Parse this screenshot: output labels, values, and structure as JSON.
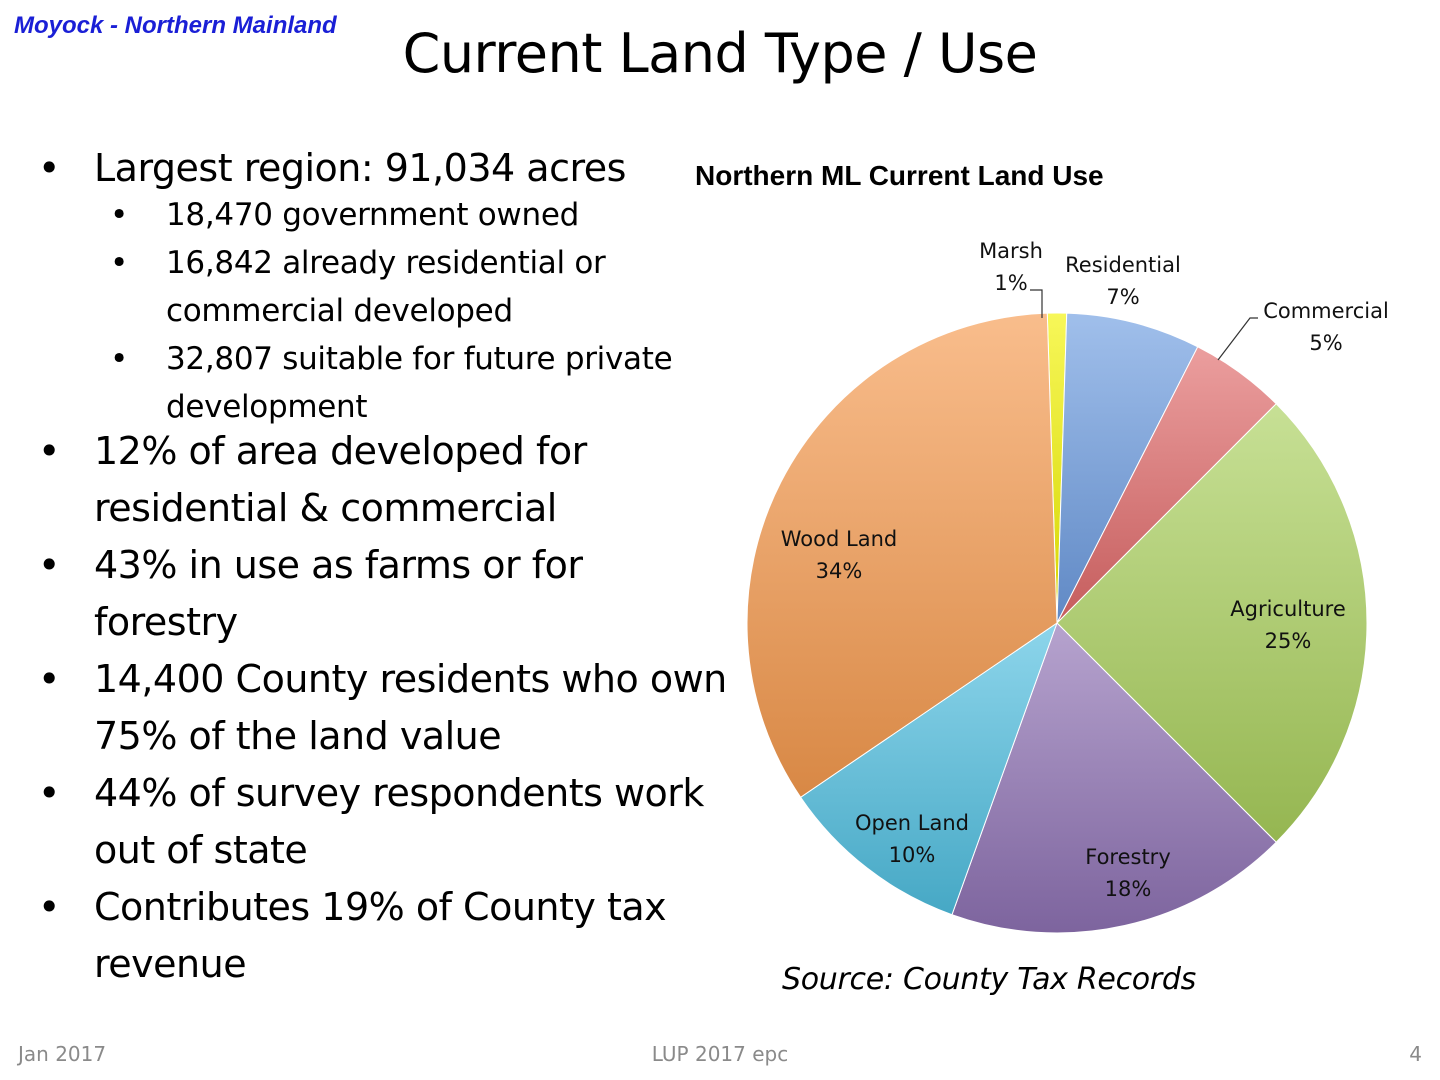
{
  "slide": {
    "region_label": "Moyock - Northern Mainland",
    "title": "Current Land Type / Use",
    "bullets": [
      {
        "text": "Largest region: 91,034 acres",
        "sub": [
          {
            "text": "18,470 government owned"
          },
          {
            "text": "16,842 already residential or commercial developed"
          },
          {
            "text": "32,807 suitable for future private development"
          }
        ]
      },
      {
        "text": "12% of area developed for residential & commercial"
      },
      {
        "text": "43% in use as farms or for forestry"
      },
      {
        "text": "14,400 County residents who own 75% of the land value"
      },
      {
        "text": "44% of survey respondents work out of state"
      },
      {
        "text": "Contributes 19% of County tax revenue"
      }
    ],
    "source": "Source: County Tax Records",
    "footer": {
      "left": "Jan 2017",
      "center": "LUP 2017 epc",
      "right": "4"
    }
  },
  "chart_data": {
    "type": "pie",
    "title": "Northern ML Current Land Use",
    "categories": [
      "Marsh",
      "Residential",
      "Commercial",
      "Agriculture",
      "Forestry",
      "Open Land",
      "Wood Land"
    ],
    "values": [
      1,
      7,
      5,
      25,
      18,
      10,
      34
    ],
    "value_labels": [
      "1%",
      "7%",
      "5%",
      "25%",
      "18%",
      "10%",
      "34%"
    ],
    "colors": [
      "#f2f200",
      "#6d9ce0",
      "#e06a6a",
      "#a9cf5c",
      "#8e72b4",
      "#4fbfe0",
      "#f59a4e"
    ],
    "legend": "none",
    "data_labels": true
  }
}
